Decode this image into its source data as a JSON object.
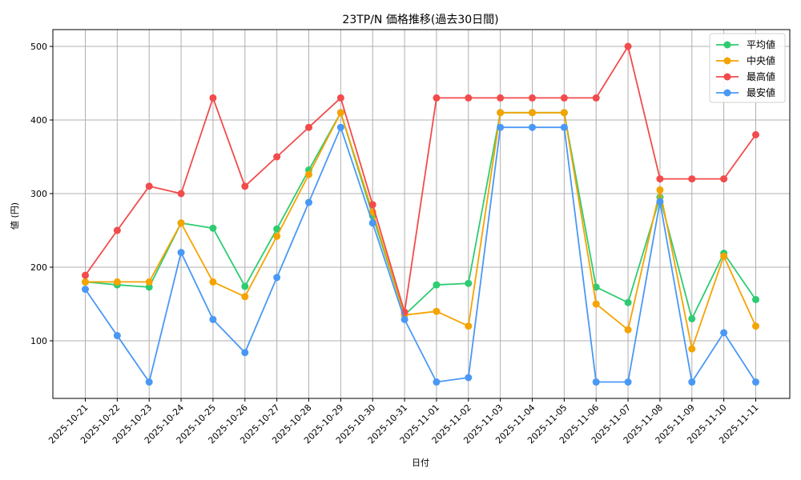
{
  "chart_data": {
    "type": "line",
    "title": "23TP/N 価格推移(過去30日間)",
    "xlabel": "日付",
    "ylabel": "値 (円)",
    "ylim": [
      22,
      522
    ],
    "yticks": [
      100,
      200,
      300,
      400,
      500
    ],
    "grid": true,
    "legend_position": "upper right",
    "categories": [
      "2025-10-21",
      "2025-10-22",
      "2025-10-23",
      "2025-10-24",
      "2025-10-25",
      "2025-10-26",
      "2025-10-27",
      "2025-10-28",
      "2025-10-29",
      "2025-10-30",
      "2025-10-31",
      "2025-11-01",
      "2025-11-02",
      "2025-11-03",
      "2025-11-04",
      "2025-11-05",
      "2025-11-06",
      "2025-11-07",
      "2025-11-08",
      "2025-11-09",
      "2025-11-10",
      "2025-11-11"
    ],
    "series": [
      {
        "name": "平均値",
        "color": "#2ecc71",
        "values": [
          180,
          176,
          173,
          260,
          253,
          174,
          252,
          332,
          410,
          270,
          135,
          176,
          178,
          410,
          410,
          410,
          173,
          152,
          295,
          130,
          219,
          156
        ]
      },
      {
        "name": "中央値",
        "color": "#f5a300",
        "values": [
          180,
          180,
          180,
          260,
          180,
          160,
          242,
          326,
          410,
          275,
          135,
          140,
          120,
          410,
          410,
          410,
          150,
          115,
          305,
          89,
          215,
          120
        ]
      },
      {
        "name": "最高値",
        "color": "#f24b4b",
        "values": [
          189,
          250,
          310,
          300,
          430,
          310,
          350,
          390,
          430,
          285,
          139,
          430,
          430,
          430,
          430,
          430,
          430,
          500,
          320,
          320,
          320,
          380
        ]
      },
      {
        "name": "最安値",
        "color": "#4a98f5",
        "values": [
          170,
          107,
          44,
          220,
          129,
          84,
          186,
          288,
          390,
          260,
          129,
          44,
          50,
          390,
          390,
          390,
          44,
          44,
          289,
          44,
          111,
          44
        ]
      }
    ]
  }
}
